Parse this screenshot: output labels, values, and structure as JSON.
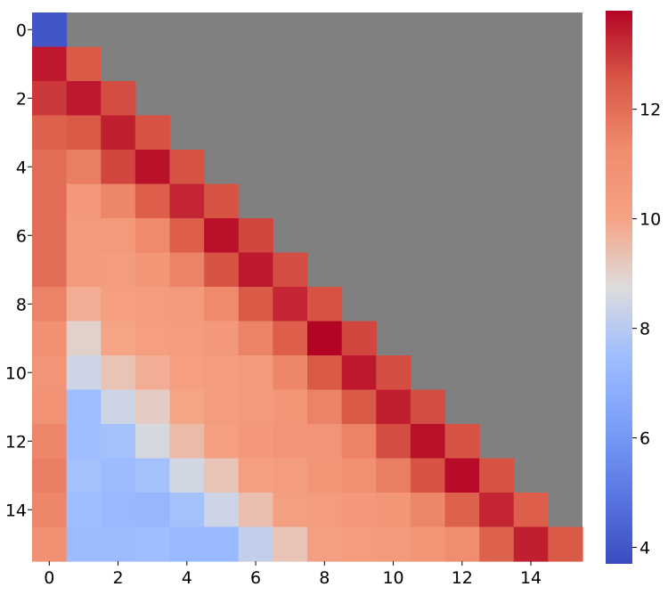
{
  "chart_data": {
    "type": "heatmap",
    "title": "",
    "xlabel": "",
    "ylabel": "",
    "rows": 16,
    "cols": 16,
    "masked_color": "#808080",
    "colormap": "coolwarm",
    "x_ticks": [
      0,
      2,
      4,
      6,
      8,
      10,
      12,
      14
    ],
    "y_ticks": [
      0,
      2,
      4,
      6,
      8,
      10,
      12,
      14
    ],
    "colorbar": {
      "vmin": 3.7,
      "vmax": 13.8,
      "ticks": [
        4,
        6,
        8,
        10,
        12
      ]
    },
    "values": [
      [
        4.0
      ],
      [
        13.5,
        12.5
      ],
      [
        13.0,
        13.5,
        12.7
      ],
      [
        12.3,
        12.5,
        13.4,
        12.6
      ],
      [
        12.0,
        11.6,
        12.8,
        13.6,
        12.6
      ],
      [
        12.0,
        10.6,
        11.4,
        12.4,
        13.3,
        12.6
      ],
      [
        12.0,
        10.5,
        10.5,
        11.3,
        12.4,
        13.6,
        12.8
      ],
      [
        12.0,
        10.5,
        10.4,
        10.7,
        11.5,
        12.6,
        13.5,
        12.7
      ],
      [
        11.5,
        9.8,
        10.3,
        10.4,
        10.5,
        11.3,
        12.5,
        13.3,
        12.6
      ],
      [
        11.0,
        9.0,
        10.0,
        10.3,
        10.4,
        10.6,
        11.5,
        12.4,
        13.8,
        12.8
      ],
      [
        10.8,
        8.4,
        9.3,
        9.8,
        10.3,
        10.4,
        10.5,
        11.4,
        12.5,
        13.5,
        12.7
      ],
      [
        10.9,
        7.5,
        8.4,
        9.1,
        10.0,
        10.4,
        10.5,
        10.7,
        11.5,
        12.5,
        13.4,
        12.7
      ],
      [
        11.4,
        7.5,
        7.6,
        8.6,
        9.5,
        10.2,
        10.6,
        10.8,
        10.8,
        11.5,
        12.7,
        13.6,
        12.6
      ],
      [
        11.6,
        7.6,
        7.4,
        7.6,
        8.5,
        9.3,
        10.2,
        10.4,
        10.7,
        11.0,
        11.6,
        12.6,
        13.7,
        12.6
      ],
      [
        11.4,
        7.5,
        7.3,
        7.2,
        7.6,
        8.4,
        9.4,
        10.2,
        10.4,
        10.6,
        10.7,
        11.4,
        12.3,
        13.3,
        12.4
      ],
      [
        11.0,
        7.4,
        7.4,
        7.5,
        7.3,
        7.3,
        8.2,
        9.3,
        10.2,
        10.4,
        10.5,
        10.7,
        11.2,
        12.3,
        13.4,
        12.5
      ]
    ]
  }
}
